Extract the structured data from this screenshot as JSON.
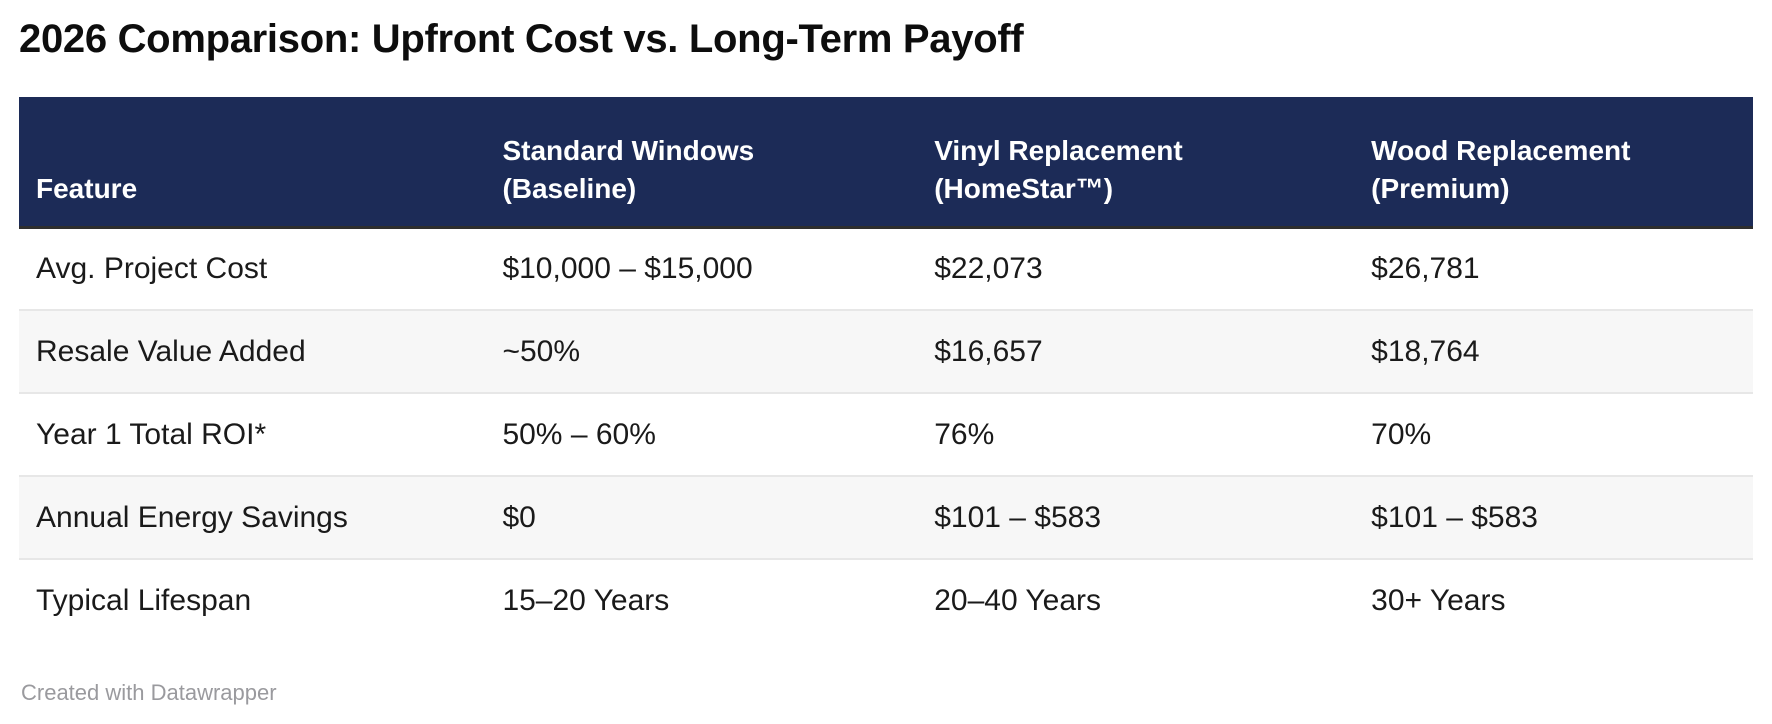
{
  "page": {
    "title": "2026 Comparison: Upfront Cost vs. Long-Term Payoff",
    "footer_credit": "Created with Datawrapper"
  },
  "colors": {
    "header_bg": "#1c2b57",
    "header_text": "#ffffff",
    "header_border_bottom": "#2e2e2e",
    "row_alt_bg": "#f7f7f7",
    "row_divider": "#e7e7e7",
    "body_text": "#1a1a1a",
    "title_text": "#0d0d0d",
    "credit_text": "#9a9a9e"
  },
  "chart_data": {
    "type": "table",
    "title": "2026 Comparison: Upfront Cost vs. Long-Term Payoff",
    "columns": [
      "Feature",
      "Standard Windows\n(Baseline)",
      "Vinyl Replacement\n(HomeStar™)",
      "Wood Replacement\n(Premium)"
    ],
    "column_widths_pct": [
      26.9,
      24.9,
      25.2,
      23.0
    ],
    "rows": [
      [
        "Avg. Project Cost",
        "$10,000 – $15,000",
        "$22,073",
        "$26,781"
      ],
      [
        "Resale Value Added",
        "~50%",
        "$16,657",
        "$18,764"
      ],
      [
        "Year 1 Total ROI*",
        "50% – 60%",
        "76%",
        "70%"
      ],
      [
        "Annual Energy Savings",
        "$0",
        "$101 – $583",
        "$101 – $583"
      ],
      [
        "Typical Lifespan",
        "15–20 Years",
        "20–40 Years",
        "30+ Years"
      ]
    ],
    "zebra_striping": true,
    "credit": "Created with Datawrapper"
  }
}
